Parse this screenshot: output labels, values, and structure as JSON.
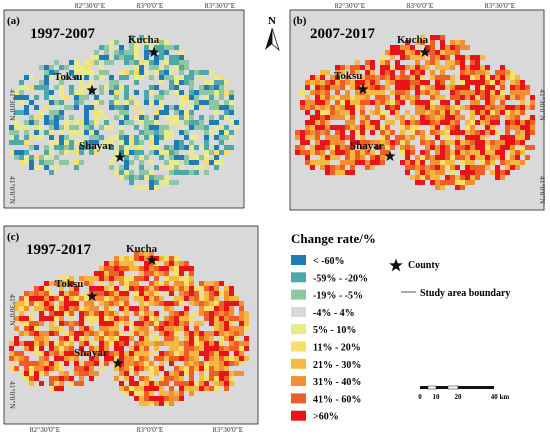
{
  "panels": [
    {
      "id": "a",
      "label": "(a)",
      "title": "1997-2007",
      "mode": 0.25,
      "top_coords": [
        "82°30'0\"E",
        "83°0'0\"E",
        "83°30'0\"E"
      ],
      "bottom_coords": [],
      "left_coords": [
        "41°30'0\"N",
        "41°0'0\"N"
      ],
      "right_coords": []
    },
    {
      "id": "b",
      "label": "(b)",
      "title": "2007-2017",
      "mode": 0.85,
      "top_coords": [
        "82°30'0\"E",
        "83°0'0\"E",
        "83°30'0\"E"
      ],
      "bottom_coords": [],
      "left_coords": [],
      "right_coords": [
        "41°30'0\"N",
        "41°0'0\"N"
      ]
    },
    {
      "id": "c",
      "label": "(c)",
      "title": "1997-2017",
      "mode": 0.8,
      "top_coords": [],
      "bottom_coords": [
        "82°30'0\"E",
        "83°0'0\"E",
        "83°30'0\"E"
      ],
      "left_coords": [
        "41°30'0\"N",
        "41°0'0\"N"
      ],
      "right_coords": []
    }
  ],
  "counties": [
    "Kucha",
    "Toksu",
    "Shayar"
  ],
  "north_arrow": "N",
  "legend": {
    "title": "Change rate/%",
    "classes": [
      {
        "label": "< -60%",
        "color": "#1f7bb5"
      },
      {
        "label": "-59% - -20%",
        "color": "#4ea7a9"
      },
      {
        "label": "-19% - -5%",
        "color": "#8fc6a2"
      },
      {
        "label": "-4% - 4%",
        "color": "#d9d9d9"
      },
      {
        "label": "5% - 10%",
        "color": "#eaea8c"
      },
      {
        "label": "11% - 20%",
        "color": "#f6e06a"
      },
      {
        "label": "21% - 30%",
        "color": "#f5b942"
      },
      {
        "label": "31% - 40%",
        "color": "#f29033"
      },
      {
        "label": "41% - 60%",
        "color": "#ee5e26"
      },
      {
        "label": ">60%",
        "color": "#e8141a"
      }
    ],
    "county_label": "County",
    "boundary_label": "Study area boundary"
  },
  "scale": {
    "ticks": [
      "0",
      "10",
      "20",
      "40 km"
    ]
  }
}
